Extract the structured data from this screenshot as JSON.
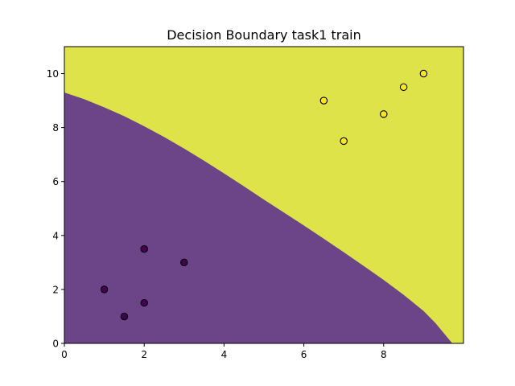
{
  "chart_data": {
    "type": "scatter",
    "title": "Decision Boundary task1 train",
    "xlabel": "",
    "ylabel": "",
    "xlim": [
      0,
      10
    ],
    "ylim": [
      0,
      11
    ],
    "xticks": [
      "0",
      "2",
      "4",
      "6",
      "8"
    ],
    "yticks": [
      "0",
      "2",
      "4",
      "6",
      "8",
      "10"
    ],
    "grid": false,
    "legend": "none",
    "regions": {
      "class_0_color": "#6b4588",
      "class_1_color": "#dde349",
      "boundary": [
        [
          0.0,
          9.3
        ],
        [
          0.5,
          9.05
        ],
        [
          1.0,
          8.75
        ],
        [
          1.5,
          8.42
        ],
        [
          2.0,
          8.05
        ],
        [
          2.5,
          7.65
        ],
        [
          3.0,
          7.22
        ],
        [
          3.5,
          6.77
        ],
        [
          4.0,
          6.3
        ],
        [
          4.5,
          5.82
        ],
        [
          5.0,
          5.33
        ],
        [
          5.5,
          4.85
        ],
        [
          6.0,
          4.37
        ],
        [
          6.5,
          3.88
        ],
        [
          7.0,
          3.38
        ],
        [
          7.5,
          2.87
        ],
        [
          8.0,
          2.35
        ],
        [
          8.5,
          1.8
        ],
        [
          9.0,
          1.2
        ],
        [
          9.3,
          0.75
        ],
        [
          9.55,
          0.3
        ],
        [
          9.72,
          0.0
        ]
      ]
    },
    "series": [
      {
        "class": 0,
        "color": "#440154",
        "points": [
          [
            1,
            2
          ],
          [
            1.5,
            1
          ],
          [
            2,
            1.5
          ],
          [
            2,
            3.5
          ],
          [
            3,
            3
          ]
        ]
      },
      {
        "class": 1,
        "color": "#fde725",
        "points": [
          [
            6.5,
            9
          ],
          [
            7,
            7.5
          ],
          [
            8,
            8.5
          ],
          [
            8.5,
            9.5
          ],
          [
            9,
            10
          ]
        ]
      }
    ]
  }
}
